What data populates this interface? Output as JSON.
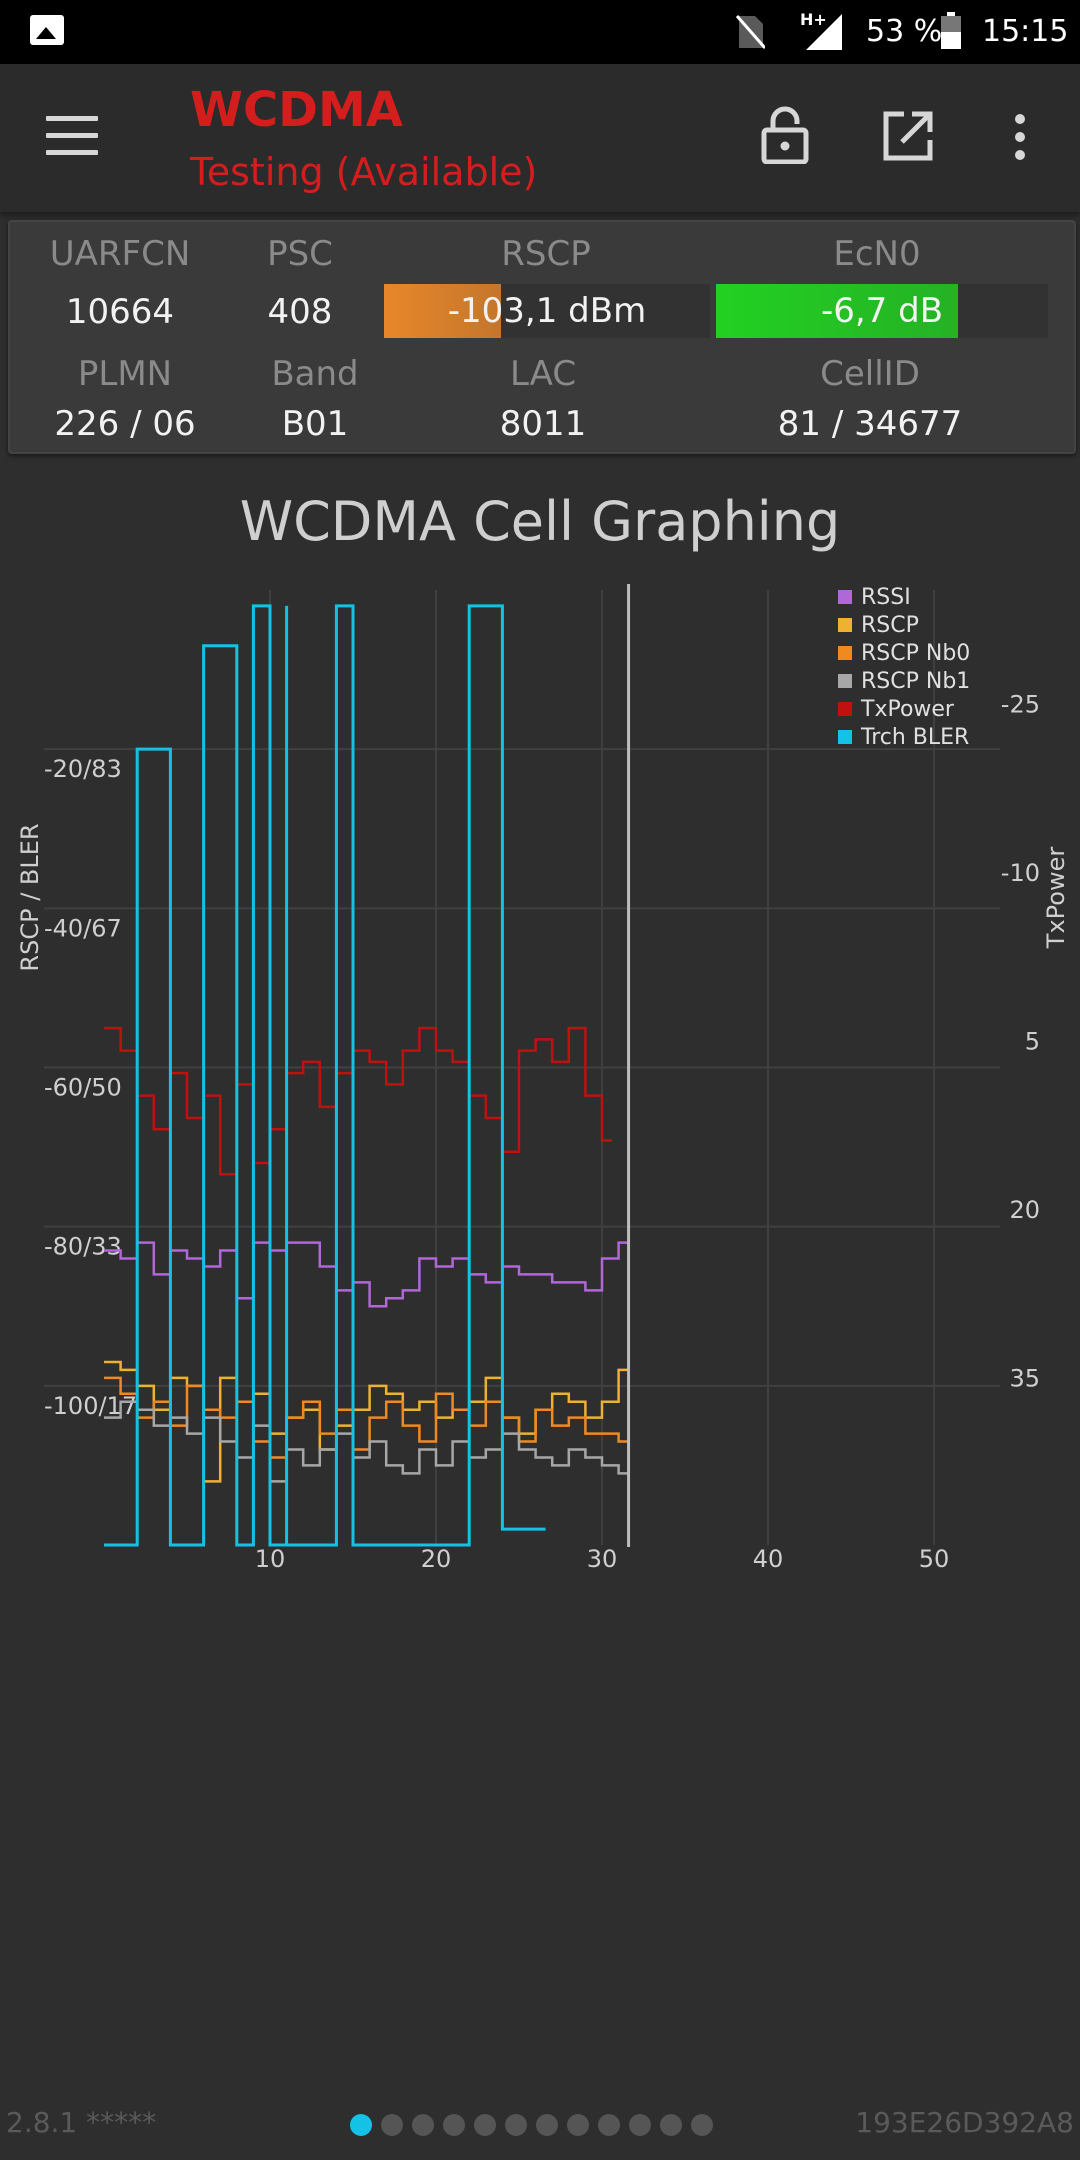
{
  "status_bar": {
    "battery_percent": "53 %",
    "time": "15:15",
    "network_type": "H+",
    "icons": [
      "photo-icon",
      "no-sim-icon",
      "signal-icon",
      "battery-icon"
    ]
  },
  "app_bar": {
    "title": "WCDMA",
    "subtitle": "Testing (Available)",
    "title_color": "#d41e1e",
    "icons": [
      "menu-icon",
      "lock-open-icon",
      "open-external-icon",
      "more-vert-icon"
    ]
  },
  "cell_info": {
    "uarfcn": {
      "label": "UARFCN",
      "value": "10664"
    },
    "psc": {
      "label": "PSC",
      "value": "408"
    },
    "rscp": {
      "label": "RSCP",
      "value": "-103,1 dBm",
      "fill_fraction": 0.36,
      "color": "#e8872a"
    },
    "ecn0": {
      "label": "EcN0",
      "value": "-6,7 dB",
      "fill_fraction": 0.73,
      "color": "#22d122"
    },
    "plmn": {
      "label": "PLMN",
      "value": "226 / 06"
    },
    "band": {
      "label": "Band",
      "value": "B01"
    },
    "lac": {
      "label": "LAC",
      "value": "8011"
    },
    "cellid": {
      "label": "CellID",
      "value": "81 / 34677"
    }
  },
  "chart_title": "WCDMA Cell Graphing",
  "chart_data": {
    "type": "line",
    "title": "WCDMA Cell Graphing",
    "xlabel": "",
    "ylabel": "RSCP / BLER",
    "y2label": "TxPower",
    "xlim": [
      0,
      56
    ],
    "ylim": [
      -120,
      0
    ],
    "y2lim": [
      50,
      -35
    ],
    "x_ticks": [
      10,
      20,
      30,
      40,
      50
    ],
    "y_ticks": [
      "-20/83",
      "-40/67",
      "-60/50",
      "-80/33",
      "-100/17"
    ],
    "y_tick_values": [
      -20,
      -40,
      -60,
      -80,
      -100
    ],
    "y2_ticks": [
      -25,
      -10,
      5,
      20,
      35
    ],
    "cursor_x": 31.6,
    "grid": true,
    "legend_position": "top-right",
    "series": [
      {
        "name": "RSSI",
        "color": "#b067d8",
        "axis": "left",
        "x": [
          0,
          1,
          2,
          3,
          4,
          5,
          6,
          7,
          8,
          9,
          10,
          11,
          12,
          13,
          14,
          15,
          16,
          17,
          18,
          19,
          20,
          21,
          22,
          23,
          24,
          25,
          26,
          27,
          28,
          29,
          30,
          31
        ],
        "y": [
          -83,
          -84,
          -82,
          -86,
          -83,
          -84,
          -85,
          -83,
          -89,
          -82,
          -83,
          -82,
          -82,
          -85,
          -88,
          -87,
          -90,
          -89,
          -88,
          -84,
          -85,
          -84,
          -86,
          -87,
          -85,
          -86,
          -86,
          -87,
          -87,
          -88,
          -84,
          -82
        ]
      },
      {
        "name": "RSCP",
        "color": "#f0b030",
        "axis": "left",
        "x": [
          0,
          1,
          2,
          3,
          4,
          5,
          6,
          7,
          8,
          9,
          10,
          11,
          12,
          13,
          14,
          15,
          16,
          17,
          18,
          19,
          20,
          21,
          22,
          23,
          24,
          25,
          26,
          27,
          28,
          29,
          30,
          31
        ],
        "y": [
          -97,
          -98,
          -100,
          -103,
          -99,
          -100,
          -112,
          -99,
          -102,
          -101,
          -106,
          -104,
          -103,
          -108,
          -105,
          -103,
          -100,
          -101,
          -103,
          -102,
          -104,
          -103,
          -102,
          -99,
          -104,
          -106,
          -103,
          -101,
          -102,
          -104,
          -102,
          -98
        ]
      },
      {
        "name": "RSCP Nb0",
        "color": "#f08a20",
        "axis": "left",
        "x": [
          0,
          1,
          2,
          3,
          4,
          5,
          6,
          7,
          8,
          9,
          10,
          11,
          12,
          13,
          14,
          15,
          16,
          17,
          18,
          19,
          20,
          21,
          22,
          23,
          24,
          25,
          26,
          27,
          28,
          29,
          30,
          31
        ],
        "y": [
          -99,
          -101,
          -104,
          -102,
          -105,
          -100,
          -103,
          -104,
          -102,
          -107,
          -109,
          -104,
          -102,
          -106,
          -103,
          -108,
          -104,
          -102,
          -105,
          -107,
          -101,
          -103,
          -105,
          -102,
          -104,
          -107,
          -103,
          -105,
          -104,
          -106,
          -106,
          -107
        ]
      },
      {
        "name": "RSCP Nb1",
        "color": "#a7a7a7",
        "axis": "left",
        "x": [
          0,
          1,
          2,
          3,
          4,
          5,
          6,
          7,
          8,
          9,
          10,
          11,
          12,
          13,
          14,
          15,
          16,
          17,
          18,
          19,
          20,
          21,
          22,
          23,
          24,
          25,
          26,
          27,
          28,
          29,
          30,
          31
        ],
        "y": [
          -104,
          -102,
          -103,
          -105,
          -104,
          -106,
          -104,
          -107,
          -109,
          -105,
          -112,
          -108,
          -110,
          -108,
          -106,
          -109,
          -107,
          -110,
          -111,
          -108,
          -110,
          -107,
          -109,
          -108,
          -106,
          -108,
          -109,
          -110,
          -108,
          -109,
          -110,
          -111
        ]
      },
      {
        "name": "TxPower",
        "color": "#c01010",
        "axis": "right",
        "x": [
          0,
          1,
          2,
          3,
          4,
          5,
          6,
          7,
          8,
          9,
          10,
          11,
          12,
          13,
          14,
          15,
          16,
          17,
          18,
          19,
          20,
          21,
          22,
          23,
          24,
          25,
          26,
          27,
          28,
          29,
          30
        ],
        "y": [
          4,
          6,
          10,
          13,
          8,
          12,
          10,
          17,
          9,
          16,
          13,
          8,
          7,
          11,
          8,
          6,
          7,
          9,
          6,
          4,
          6,
          7,
          10,
          12,
          15,
          6,
          5,
          7,
          4,
          10,
          14
        ]
      },
      {
        "name": "Trch BLER",
        "color": "#14c2e6",
        "axis": "left",
        "x": [
          0,
          2,
          2,
          4,
          4,
          6,
          6,
          6,
          7,
          8,
          8,
          9,
          9,
          10,
          10,
          10,
          11,
          11,
          11,
          12,
          12,
          13,
          13,
          14,
          14,
          15,
          15,
          16,
          16,
          18,
          20,
          22,
          22,
          24,
          24,
          25,
          25,
          26
        ],
        "y": [
          -120,
          -120,
          -20,
          -20,
          -120,
          -120,
          -120,
          -7,
          -7,
          -7,
          -120,
          -120,
          -2,
          -2,
          -120,
          -120,
          -120,
          -2,
          -120,
          -120,
          -120,
          -120,
          -120,
          -120,
          -2,
          -2,
          -120,
          -120,
          -120,
          -120,
          -120,
          -120,
          -2,
          -2,
          -118,
          -118,
          -118,
          -118
        ]
      }
    ]
  },
  "footer": {
    "version": "2.8.1 *****",
    "device_id": "193E26D392A8",
    "page_count": 12,
    "active_page": 0,
    "accent_color": "#14c2e6"
  }
}
